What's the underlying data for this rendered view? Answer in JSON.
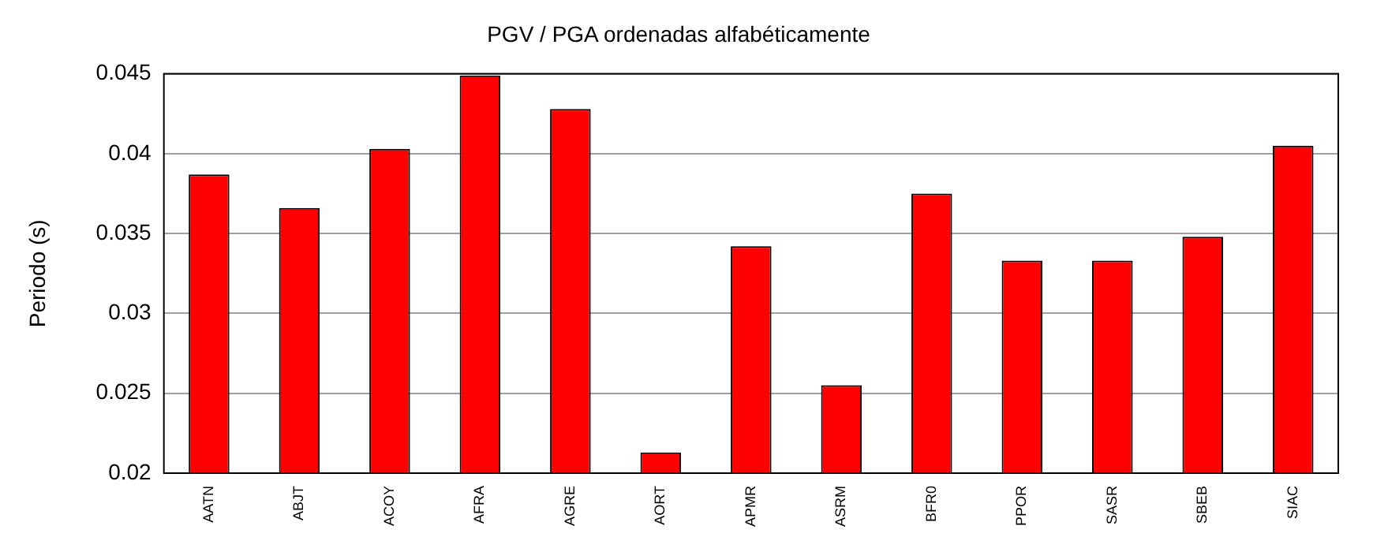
{
  "chart_data": {
    "type": "bar",
    "title": "PGV / PGA ordenadas alfabéticamente",
    "ylabel": "Periodo (s)",
    "categories": [
      "AATN",
      "ABJT",
      "ACOY",
      "AFRA",
      "AGRE",
      "AORT",
      "APMR",
      "ASRM",
      "BFR0",
      "PPOR",
      "SASR",
      "SBEB",
      "SIAC"
    ],
    "values": [
      0.0387,
      0.0366,
      0.0403,
      0.0449,
      0.0428,
      0.0213,
      0.0342,
      0.0255,
      0.0375,
      0.0333,
      0.0333,
      0.0348,
      0.0405
    ],
    "color": "#ff0000",
    "ylim": [
      0.02,
      0.045
    ],
    "yticks": [
      0.02,
      0.025,
      0.03,
      0.035,
      0.04,
      0.045
    ],
    "grid": "y"
  }
}
